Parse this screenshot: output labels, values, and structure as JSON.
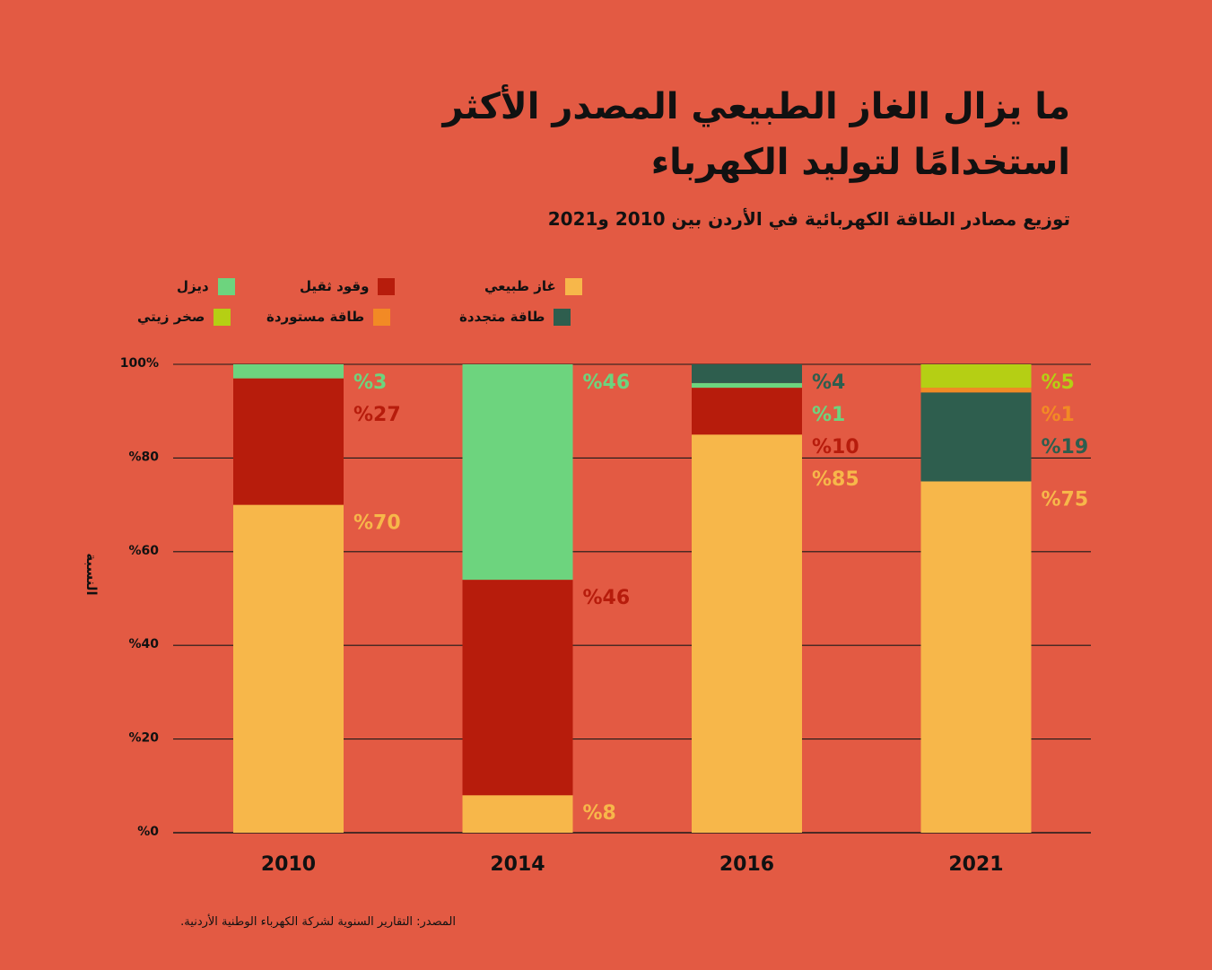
{
  "header": {
    "title_line1": "ما يزال الغاز الطبيعي المصدر الأكثر",
    "title_line2": "استخدامًا لتوليد الكهرباء",
    "subtitle": "توزيع مصادر الطاقة الكهربائية في الأردن بين 2010 و2021"
  },
  "footer": {
    "source": "المصدر: التقارير السنوية لشركة الكهرباء الوطنية الأردنية."
  },
  "legend": [
    {
      "label": "غاز طبيعي",
      "color": "#f7b74a"
    },
    {
      "label": "وقود ثقيل",
      "color": "#b71c0c"
    },
    {
      "label": "ديزل",
      "color": "#6dd47e"
    },
    {
      "label": "طاقة متجددة",
      "color": "#2e5e4e"
    },
    {
      "label": "طاقة مستوردة",
      "color": "#f28a25"
    },
    {
      "label": "صخر زيتي",
      "color": "#b5cf14"
    }
  ],
  "chart_data": {
    "type": "bar",
    "stacked": true,
    "categories": [
      "2010",
      "2014",
      "2016",
      "2021"
    ],
    "ylabel": "النسبة",
    "ylim": [
      0,
      100
    ],
    "yticks": [
      0,
      20,
      40,
      60,
      80,
      100
    ],
    "ytick_labels": [
      "%0",
      "%20",
      "%40",
      "%60",
      "%80",
      "100%"
    ],
    "grid": true,
    "legend_position": "top",
    "series": [
      {
        "name": "غاز طبيعي",
        "color": "#f7b74a",
        "label_color": "#f7b74a",
        "values": [
          70,
          8,
          85,
          75
        ]
      },
      {
        "name": "وقود ثقيل",
        "color": "#b71c0c",
        "label_color": "#b71c0c",
        "values": [
          27,
          46,
          10,
          0
        ]
      },
      {
        "name": "ديزل",
        "color": "#6dd47e",
        "label_color": "#6dd47e",
        "values": [
          3,
          46,
          1,
          0
        ]
      },
      {
        "name": "طاقة متجددة",
        "color": "#2e5e4e",
        "label_color": "#2e5e4e",
        "values": [
          0,
          0,
          4,
          19
        ]
      },
      {
        "name": "طاقة مستوردة",
        "color": "#f28a25",
        "label_color": "#f28a25",
        "values": [
          0,
          0,
          0,
          1
        ]
      },
      {
        "name": "صخر زيتي",
        "color": "#b5cf14",
        "label_color": "#b5cf14",
        "values": [
          0,
          0,
          0,
          5
        ]
      }
    ],
    "data_labels": [
      [
        {
          "text": "%3",
          "series": 2
        },
        {
          "text": "%27",
          "series": 1
        },
        {
          "text": "%70",
          "series": 0
        }
      ],
      [
        {
          "text": "%46",
          "series": 2
        },
        {
          "text": "%46",
          "series": 1
        },
        {
          "text": "%8",
          "series": 0
        }
      ],
      [
        {
          "text": "%4",
          "series": 3
        },
        {
          "text": "%1",
          "series": 2
        },
        {
          "text": "%10",
          "series": 1
        },
        {
          "text": "%85",
          "series": 0
        }
      ],
      [
        {
          "text": "%5",
          "series": 5
        },
        {
          "text": "%1",
          "series": 4
        },
        {
          "text": "%19",
          "series": 3
        },
        {
          "text": "%75",
          "series": 0
        }
      ]
    ]
  }
}
